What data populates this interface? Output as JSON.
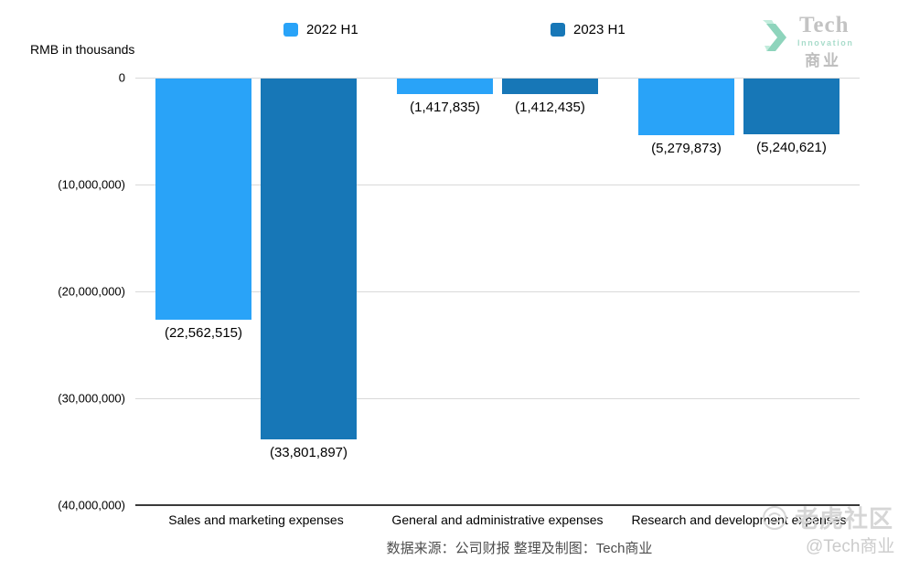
{
  "meta": {
    "units_label": "RMB in thousands"
  },
  "legend": {
    "items": [
      {
        "label": "2022 H1",
        "color": "#29a3f8"
      },
      {
        "label": "2023 H1",
        "color": "#1777b7"
      }
    ]
  },
  "logo": {
    "brand": "Tech",
    "sub": "Innovation",
    "cn": "商业",
    "chevron_color_main": "#8ed4bc",
    "chevron_color_light": "#c2ecdc"
  },
  "source_note": "数据来源：公司财报 整理及制图：Tech商业",
  "watermark": {
    "community": "老虎社区",
    "handle": "@Tech商业"
  },
  "chart_data": {
    "type": "bar",
    "title": "",
    "ylabel": "RMB in thousands",
    "xlabel": "",
    "grid": true,
    "legend_position": "top",
    "ylim": [
      -40000000,
      0
    ],
    "y_ticks": [
      "0",
      "(10,000,000)",
      "(20,000,000)",
      "(30,000,000)",
      "(40,000,000)"
    ],
    "y_tick_values": [
      0,
      -10000000,
      -20000000,
      -30000000,
      -40000000
    ],
    "categories": [
      "Sales and marketing expenses",
      "General and administrative expenses",
      "Research and development expenses"
    ],
    "series": [
      {
        "name": "2022 H1",
        "color": "#29a3f8",
        "values": [
          -22562515,
          -1417835,
          -5279873
        ],
        "labels": [
          "(22,562,515)",
          "(1,417,835)",
          "(5,279,873)"
        ]
      },
      {
        "name": "2023 H1",
        "color": "#1777b7",
        "values": [
          -33801897,
          -1412435,
          -5240621
        ],
        "labels": [
          "(33,801,897)",
          "(1,412,435)",
          "(5,240,621)"
        ]
      }
    ]
  }
}
